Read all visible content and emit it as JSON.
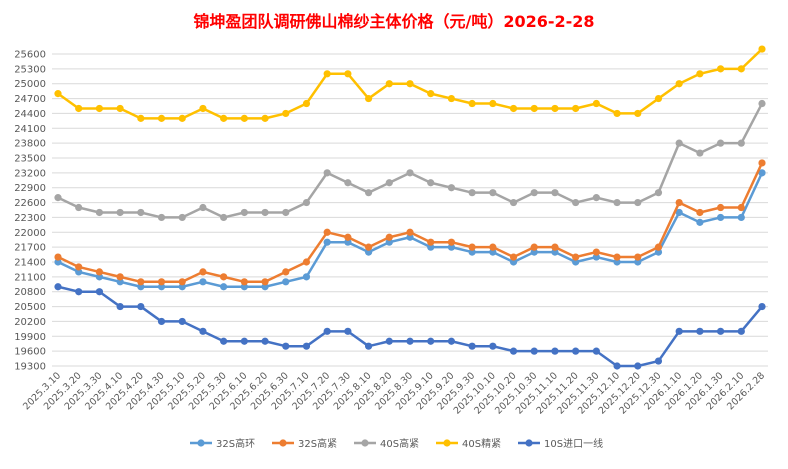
{
  "chart_data": {
    "type": "line",
    "title": "锦坤盈团队调研佛山棉纱主体价格（元/吨）2026-2-28",
    "title_color": "#ff0000",
    "xlabel": "",
    "ylabel": "",
    "ylim": [
      19300,
      25600
    ],
    "y_ticks": [
      19300,
      19600,
      19900,
      20200,
      20500,
      20800,
      21100,
      21400,
      21700,
      22000,
      22300,
      22600,
      22900,
      23200,
      23500,
      23800,
      24100,
      24400,
      24700,
      25000,
      25300,
      25600
    ],
    "grid": true,
    "legend_position": "bottom",
    "categories": [
      "2025.3.10",
      "2025.3.20",
      "2025.3.30",
      "2025.4.10",
      "2025.4.20",
      "2025.4.30",
      "2025.5.10",
      "2025.5.20",
      "2025.5.30",
      "2025.6.10",
      "2025.6.20",
      "2025.6.30",
      "2025.7.10",
      "2025.7.20",
      "2025.7.30",
      "2025.8.10",
      "2025.8.20",
      "2025.8.30",
      "2025.9.10",
      "2025.9.20",
      "2025.9.30",
      "2025.10.10",
      "2025.10.20",
      "2025.10.30",
      "2025.11.10",
      "2025.11.20",
      "2025.11.30",
      "2025.12.10",
      "2025.12.20",
      "2025.12.30",
      "2026.1.10",
      "2026.1.20",
      "2026.1.30",
      "2026.2.10",
      "2026.2.28"
    ],
    "series": [
      {
        "name": "32S高环",
        "color": "#5b9bd5",
        "values": [
          21400,
          21200,
          21100,
          21000,
          20900,
          20900,
          20900,
          21000,
          20900,
          20900,
          20900,
          21000,
          21100,
          21800,
          21800,
          21600,
          21800,
          21900,
          21700,
          21700,
          21600,
          21600,
          21400,
          21600,
          21600,
          21400,
          21500,
          21400,
          21400,
          21600,
          22400,
          22200,
          22300,
          22300,
          23200
        ]
      },
      {
        "name": "32S高紧",
        "color": "#ed7d31",
        "values": [
          21500,
          21300,
          21200,
          21100,
          21000,
          21000,
          21000,
          21200,
          21100,
          21000,
          21000,
          21200,
          21400,
          22000,
          21900,
          21700,
          21900,
          22000,
          21800,
          21800,
          21700,
          21700,
          21500,
          21700,
          21700,
          21500,
          21600,
          21500,
          21500,
          21700,
          22600,
          22400,
          22500,
          22500,
          23400
        ]
      },
      {
        "name": "40S高紧",
        "color": "#a5a5a5",
        "values": [
          22700,
          22500,
          22400,
          22400,
          22400,
          22300,
          22300,
          22500,
          22300,
          22400,
          22400,
          22400,
          22600,
          23200,
          23000,
          22800,
          23000,
          23200,
          23000,
          22900,
          22800,
          22800,
          22600,
          22800,
          22800,
          22600,
          22700,
          22600,
          22600,
          22800,
          23800,
          23600,
          23800,
          23800,
          24600
        ]
      },
      {
        "name": "40S精紧",
        "color": "#ffc000",
        "values": [
          24800,
          24500,
          24500,
          24500,
          24300,
          24300,
          24300,
          24500,
          24300,
          24300,
          24300,
          24400,
          24600,
          25200,
          25200,
          24700,
          25000,
          25000,
          24800,
          24700,
          24600,
          24600,
          24500,
          24500,
          24500,
          24500,
          24600,
          24400,
          24400,
          24700,
          25000,
          25200,
          25300,
          25300,
          25700
        ]
      },
      {
        "name": "10S进口一线",
        "color": "#4472c4",
        "values": [
          20900,
          20800,
          20800,
          20500,
          20500,
          20200,
          20200,
          20000,
          19800,
          19800,
          19800,
          19700,
          19700,
          20000,
          20000,
          19700,
          19800,
          19800,
          19800,
          19800,
          19700,
          19700,
          19600,
          19600,
          19600,
          19600,
          19600,
          19300,
          19300,
          19400,
          20000,
          20000,
          20000,
          20000,
          20500
        ]
      }
    ]
  }
}
